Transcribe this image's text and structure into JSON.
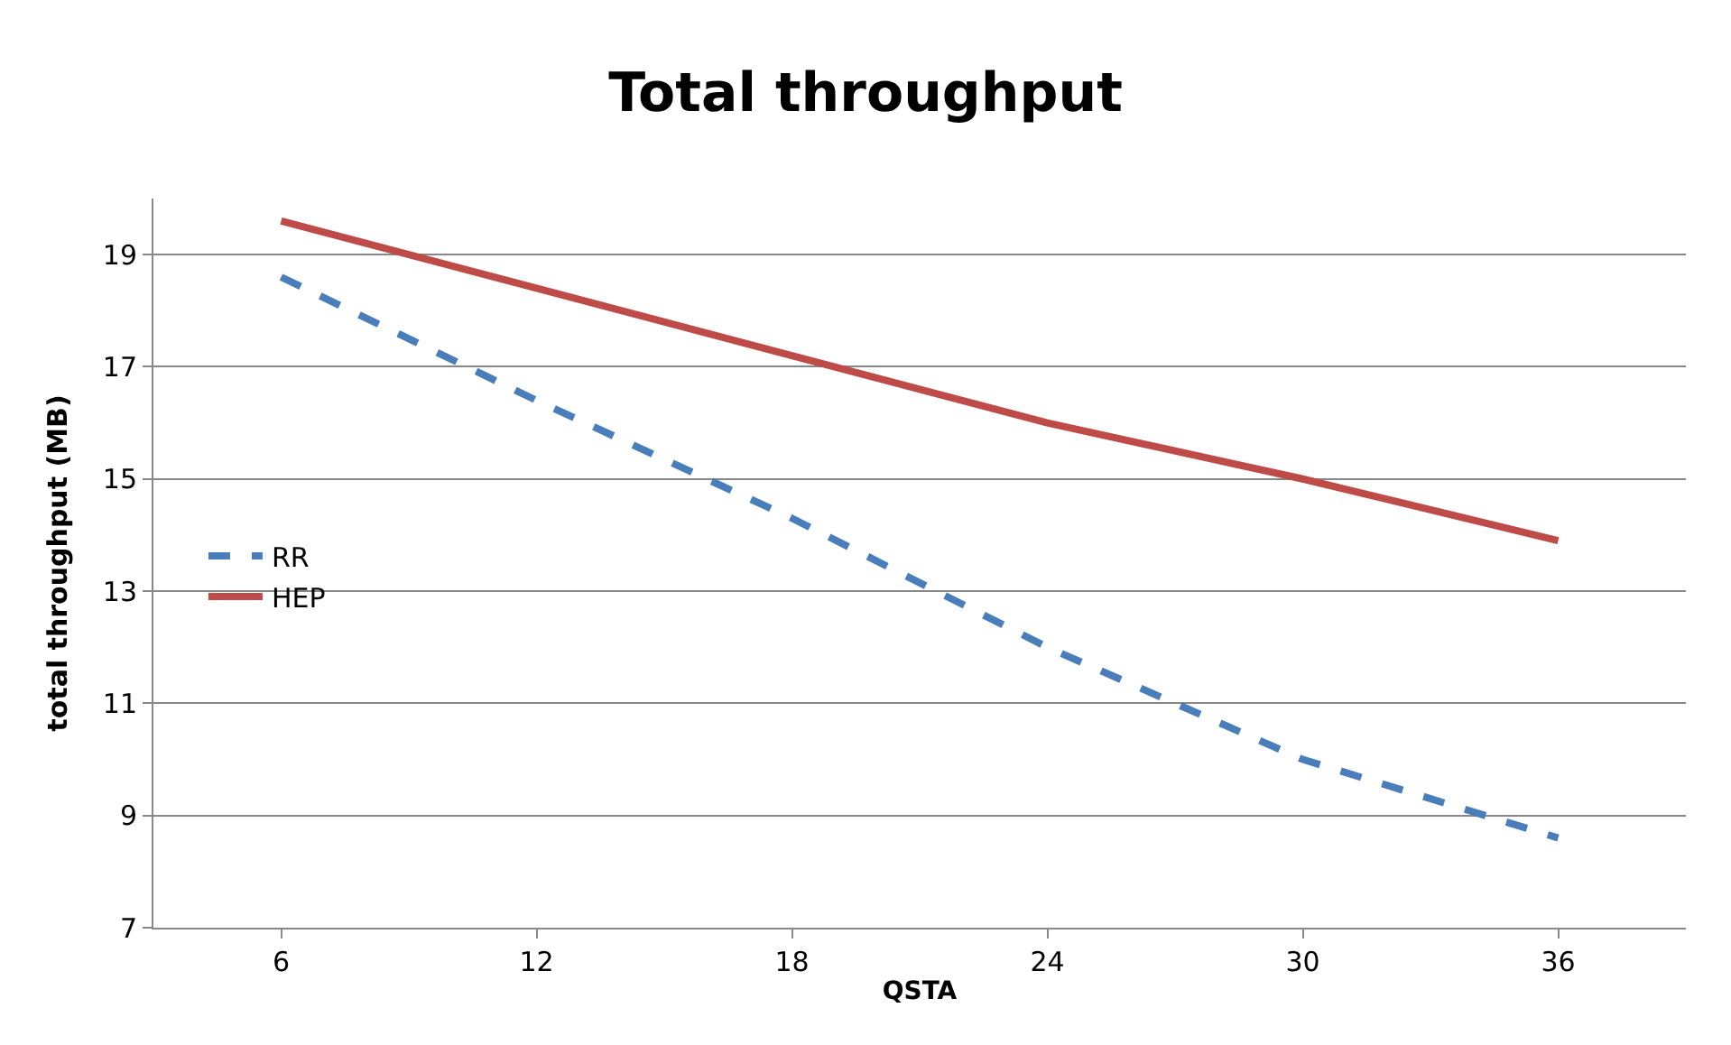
{
  "chart_data": {
    "type": "line",
    "title": "Total throughput",
    "xlabel": "QSTA",
    "ylabel": "total throughput (MB)",
    "categories": [
      "6",
      "12",
      "18",
      "24",
      "30",
      "36"
    ],
    "series": [
      {
        "name": "RR",
        "color": "#4a7ebb",
        "line_style": "dashed",
        "values": [
          18.6,
          16.4,
          14.3,
          12.0,
          10.0,
          8.6
        ]
      },
      {
        "name": "HEP",
        "color": "#be4b48",
        "line_style": "solid",
        "values": [
          19.6,
          18.4,
          17.2,
          16.0,
          15.0,
          13.9
        ]
      }
    ],
    "ylim": [
      7,
      20
    ],
    "yticks": [
      7,
      9,
      11,
      13,
      15,
      17,
      19
    ],
    "grid": "y",
    "legend": "left",
    "marker": "none"
  }
}
